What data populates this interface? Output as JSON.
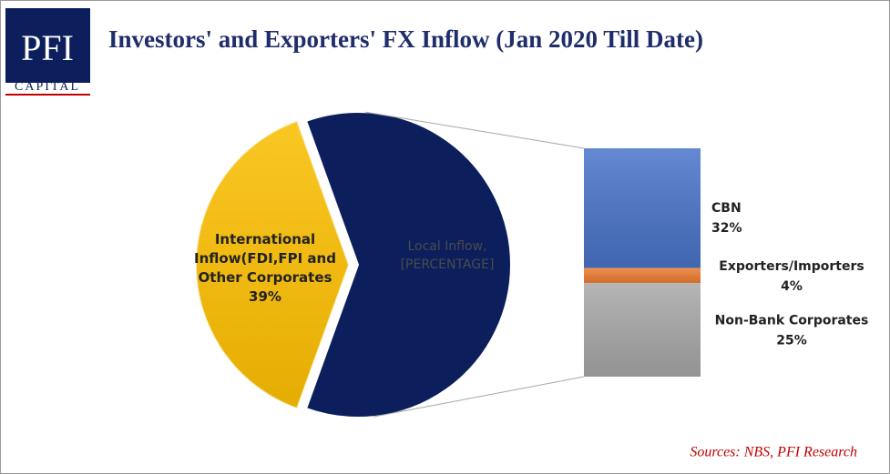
{
  "logo": {
    "name": "PFI",
    "sub": "CAPITAL"
  },
  "chart_data": {
    "type": "pie-of-bar",
    "title": "Investors' and Exporters' FX Inflow (Jan 2020 Till Date)",
    "categories": [
      "International Inflow(FDI,FPI and Other Corporates",
      "Local Inflow,"
    ],
    "values": [
      39,
      61
    ],
    "value_labels": [
      "39%",
      "[PERCENTAGE]"
    ],
    "colors": [
      "#f2b705",
      "#0c1f5c"
    ],
    "breakdown": {
      "categories": [
        "CBN",
        "Exporters/Importers",
        "Non-Bank Corporates"
      ],
      "values": [
        32,
        4,
        25
      ],
      "value_labels": [
        "32%",
        "4%",
        "25%"
      ],
      "colors": [
        "#4a74c9",
        "#ed7d31",
        "#a8a8a8"
      ]
    },
    "source": "Sources: NBS, PFI Research"
  }
}
